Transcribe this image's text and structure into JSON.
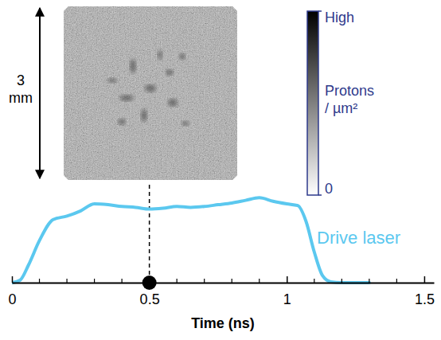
{
  "chart_data": {
    "type": "line",
    "x": [
      0,
      0.03,
      0.06,
      0.1,
      0.15,
      0.2,
      0.25,
      0.3,
      0.35,
      0.4,
      0.45,
      0.5,
      0.55,
      0.6,
      0.65,
      0.7,
      0.75,
      0.8,
      0.85,
      0.9,
      0.95,
      1.0,
      1.04,
      1.07,
      1.1,
      1.13,
      1.16,
      1.2,
      1.3
    ],
    "series": [
      {
        "name": "Drive laser",
        "color": "#5bc8ef",
        "values": [
          0,
          0.03,
          0.2,
          0.48,
          0.72,
          0.76,
          0.82,
          0.9,
          0.89,
          0.87,
          0.86,
          0.84,
          0.85,
          0.87,
          0.86,
          0.87,
          0.89,
          0.91,
          0.94,
          0.97,
          0.93,
          0.9,
          0.88,
          0.7,
          0.35,
          0.08,
          0.01,
          0,
          0
        ]
      }
    ],
    "xlabel": "Time (ns)",
    "xlim": [
      0,
      1.535
    ],
    "xticks": [
      0,
      0.5,
      1,
      1.5
    ],
    "minor_xticks": [
      0.1,
      0.2,
      0.3,
      0.4,
      0.6,
      0.7,
      0.8,
      0.9,
      1.1,
      1.2,
      1.3,
      1.4
    ],
    "ylim": [
      0,
      1.1
    ],
    "tick_labels": "x",
    "snapshot_time": 0.5,
    "scale_bar": {
      "value": 3,
      "label": "3 mm"
    },
    "colorbar": {
      "range": [
        0,
        1
      ],
      "ticks": [
        {
          "value": 1,
          "label": "High"
        },
        0
      ],
      "title": "Protons / µm²"
    }
  }
}
